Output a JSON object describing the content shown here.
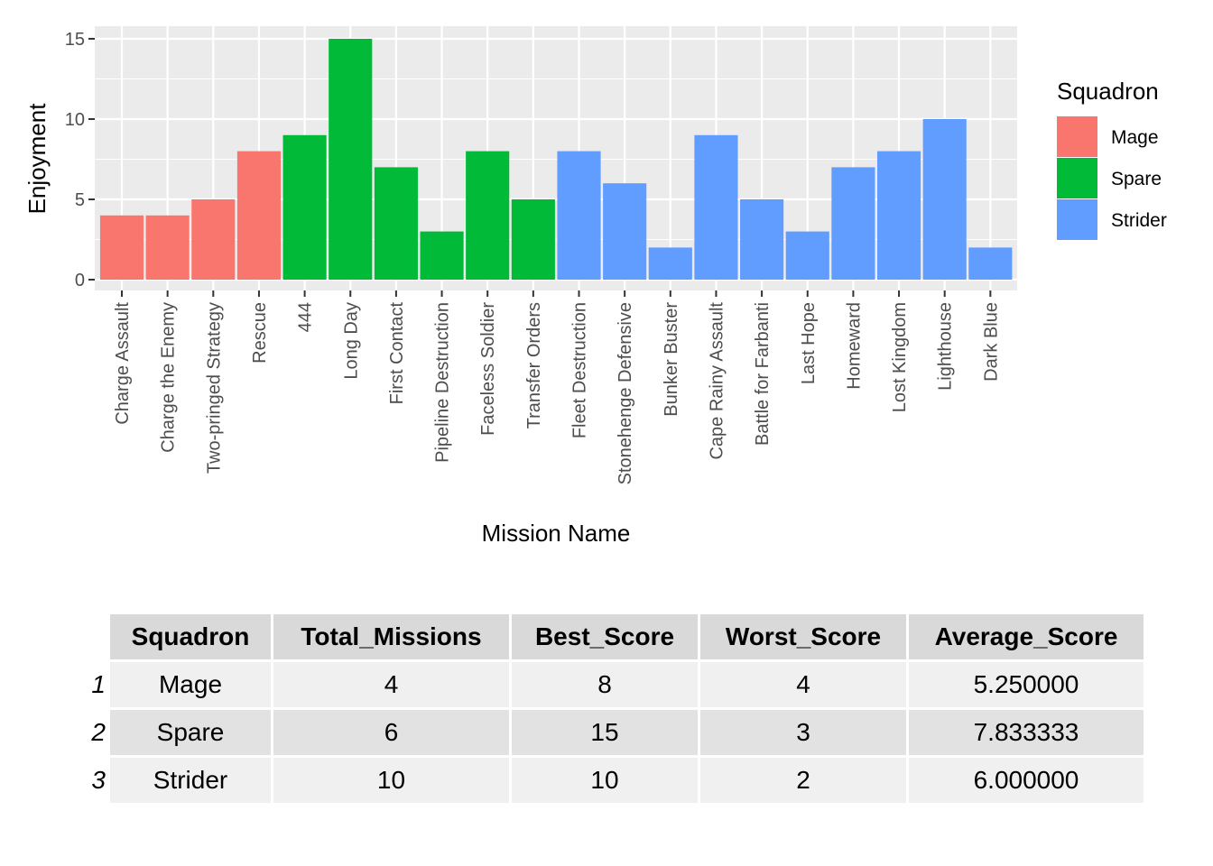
{
  "chart_data": {
    "type": "bar",
    "xlabel": "Mission Name",
    "ylabel": "Enjoyment",
    "ylim": [
      0,
      15.75
    ],
    "yticks": [
      0,
      5,
      10,
      15
    ],
    "grid": true,
    "legend_position": "right",
    "legend_title": "Squadron",
    "categories": [
      "Charge Assault",
      "Charge the Enemy",
      "Two-pringed Strategy",
      "Rescue",
      "444",
      "Long Day",
      "First Contact",
      "Pipeline Destruction",
      "Faceless Soldier",
      "Transfer Orders",
      "Fleet Destruction",
      "Stonehenge Defensive",
      "Bunker Buster",
      "Cape Rainy Assault",
      "Battle for Farbanti",
      "Last Hope",
      "Homeward",
      "Lost Kingdom",
      "Lighthouse",
      "Dark Blue"
    ],
    "values": [
      4,
      4,
      5,
      8,
      9,
      15,
      7,
      3,
      8,
      5,
      8,
      6,
      2,
      9,
      5,
      3,
      7,
      8,
      10,
      2
    ],
    "groups": [
      "Mage",
      "Mage",
      "Mage",
      "Mage",
      "Spare",
      "Spare",
      "Spare",
      "Spare",
      "Spare",
      "Spare",
      "Strider",
      "Strider",
      "Strider",
      "Strider",
      "Strider",
      "Strider",
      "Strider",
      "Strider",
      "Strider",
      "Strider"
    ],
    "series": [
      {
        "name": "Mage",
        "color": "#F8766D"
      },
      {
        "name": "Spare",
        "color": "#00BA38"
      },
      {
        "name": "Strider",
        "color": "#619CFF"
      }
    ]
  },
  "table": {
    "headers": [
      "Squadron",
      "Total_Missions",
      "Best_Score",
      "Worst_Score",
      "Average_Score"
    ],
    "rows": [
      {
        "rowname": "1",
        "squadron": "Mage",
        "total": "4",
        "best": "8",
        "worst": "4",
        "avg": "5.250000"
      },
      {
        "rowname": "2",
        "squadron": "Spare",
        "total": "6",
        "best": "15",
        "worst": "3",
        "avg": "7.833333"
      },
      {
        "rowname": "3",
        "squadron": "Strider",
        "total": "10",
        "best": "10",
        "worst": "2",
        "avg": "6.000000"
      }
    ]
  }
}
